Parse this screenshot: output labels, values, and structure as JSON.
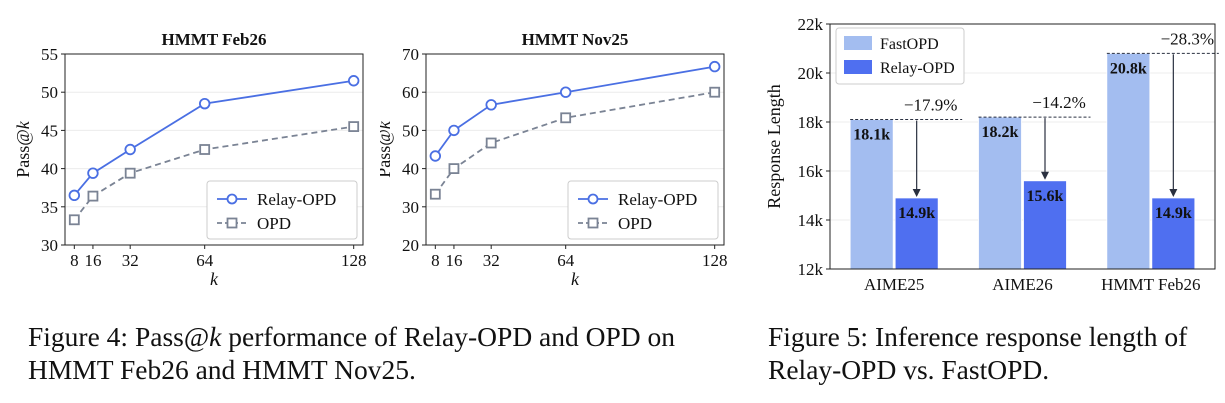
{
  "figures": [
    {
      "caption_pre": "Figure 4: Pass@",
      "caption_k": "k",
      "caption_post": " performance of Relay-OPD and OPD on HMMT Feb26 and HMMT Nov25."
    },
    {
      "caption": "Figure 5: Inference response length of Relay-OPD vs. FastOPD."
    }
  ],
  "chart_data": [
    {
      "type": "line",
      "title": "HMMT Feb26",
      "xlabel": "k",
      "ylabel_pre": "Pass@",
      "ylabel_k": "k",
      "x": [
        8,
        16,
        32,
        64,
        128
      ],
      "xlim": [
        4,
        132
      ],
      "ylim": [
        30,
        55
      ],
      "yticks": [
        30,
        35,
        40,
        45,
        50,
        55
      ],
      "grid": true,
      "legend": "bottom-right",
      "series": [
        {
          "name": "Relay-OPD",
          "color": "#4a6fe3",
          "marker": "circle",
          "dash": "solid",
          "values": [
            36.5,
            39.4,
            42.5,
            48.5,
            51.5
          ]
        },
        {
          "name": "OPD",
          "color": "#7a8394",
          "marker": "square",
          "dash": "dashed",
          "values": [
            33.3,
            36.4,
            39.4,
            42.5,
            45.5
          ]
        }
      ]
    },
    {
      "type": "line",
      "title": "HMMT Nov25",
      "xlabel": "k",
      "ylabel_pre": "Pass@",
      "ylabel_k": "k",
      "x": [
        8,
        16,
        32,
        64,
        128
      ],
      "xlim": [
        4,
        132
      ],
      "ylim": [
        20,
        70
      ],
      "yticks": [
        20,
        30,
        40,
        50,
        60,
        70
      ],
      "grid": true,
      "legend": "bottom-right",
      "series": [
        {
          "name": "Relay-OPD",
          "color": "#4a6fe3",
          "marker": "circle",
          "dash": "solid",
          "values": [
            43.3,
            50.0,
            56.7,
            60.0,
            66.7
          ]
        },
        {
          "name": "OPD",
          "color": "#7a8394",
          "marker": "square",
          "dash": "dashed",
          "values": [
            33.3,
            40.0,
            46.7,
            53.3,
            60.0
          ]
        }
      ]
    },
    {
      "type": "bar",
      "title": "",
      "xlabel": "",
      "ylabel": "Response Length",
      "categories": [
        "AIME25",
        "AIME26",
        "HMMT Feb26"
      ],
      "ylim": [
        12,
        22
      ],
      "yticks": [
        12,
        14,
        16,
        18,
        20,
        22
      ],
      "ytick_labels": [
        "12k",
        "14k",
        "16k",
        "18k",
        "20k",
        "22k"
      ],
      "grid": true,
      "legend": "top-left",
      "series": [
        {
          "name": "FastOPD",
          "color": "#a3bdf0",
          "values": [
            18.1,
            18.2,
            20.8
          ],
          "labels": [
            "18.1k",
            "18.2k",
            "20.8k"
          ]
        },
        {
          "name": "Relay-OPD",
          "color": "#4f6ff0",
          "values": [
            14.9,
            15.6,
            14.9
          ],
          "labels": [
            "14.9k",
            "15.6k",
            "14.9k"
          ]
        }
      ],
      "annotations": [
        "−17.9%",
        "−14.2%",
        "−28.3%"
      ]
    }
  ]
}
